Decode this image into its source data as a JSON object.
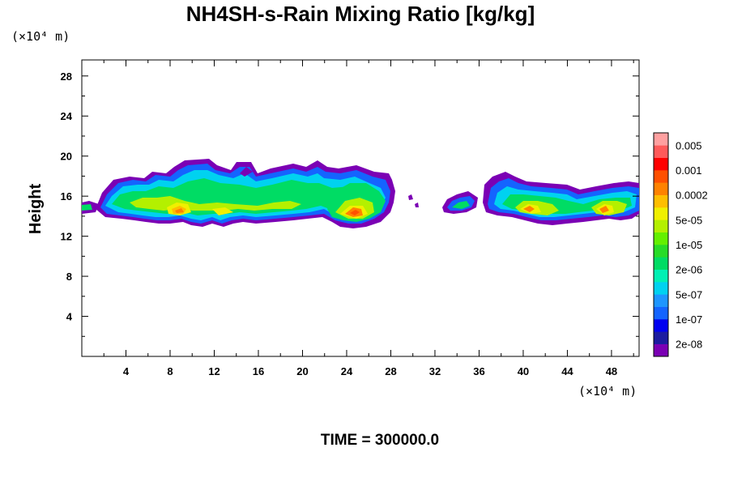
{
  "chart_data": {
    "type": "heatmap",
    "title": "NH4SH-s-Rain Mixing Ratio [kg/kg]",
    "xlabel": "",
    "ylabel": "Height",
    "x_unit_label": "(×10⁴ m)",
    "y_unit_label": "(×10⁴ m)",
    "xlim": [
      0,
      50.5
    ],
    "ylim": [
      0,
      29.6
    ],
    "x_ticks": [
      "4",
      "8",
      "12",
      "16",
      "20",
      "24",
      "28",
      "32",
      "36",
      "40",
      "44",
      "48"
    ],
    "y_ticks": [
      "4",
      "8",
      "12",
      "16",
      "20",
      "24",
      "28"
    ],
    "footer": "TIME = 300000.0",
    "colorbar": {
      "labels": [
        "0.005",
        "0.001",
        "0.0002",
        "5e-05",
        "1e-05",
        "2e-06",
        "5e-07",
        "1e-07",
        "2e-08"
      ],
      "colors": [
        "#7b00b4",
        "#1c1ca0",
        "#0000f0",
        "#1464ff",
        "#1e96ff",
        "#00d2f0",
        "#00f0b4",
        "#00dc64",
        "#28dc28",
        "#64f000",
        "#b4f000",
        "#f0f000",
        "#ffbe00",
        "#ff8200",
        "#ff5000",
        "#ff0000",
        "#ff5a5a",
        "#ffa0a0"
      ]
    },
    "clouds": [
      {
        "x_range": [
          0,
          3
        ],
        "y_range": [
          14.5,
          15.8
        ]
      },
      {
        "x_range": [
          3,
          28.5
        ],
        "y_range": [
          13.3,
          19.8
        ]
      },
      {
        "x_range": [
          32.8,
          36.2
        ],
        "y_range": [
          14.5,
          16.3
        ]
      },
      {
        "x_range": [
          36.5,
          50.5
        ],
        "y_range": [
          13.5,
          18.0
        ]
      }
    ]
  }
}
